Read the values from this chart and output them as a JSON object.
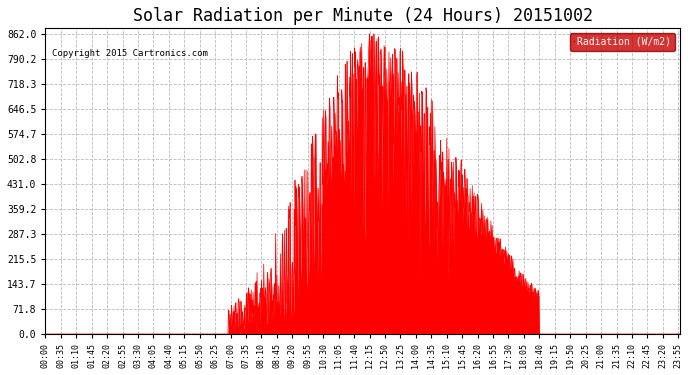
{
  "title": "Solar Radiation per Minute (24 Hours) 20151002",
  "copyright_text": "Copyright 2015 Cartronics.com",
  "background_color": "#ffffff",
  "plot_background_color": "#ffffff",
  "line_color": "#ff0000",
  "fill_color": "#ff0000",
  "grid_color": "#bbbbbb",
  "title_fontsize": 12,
  "ymin": 0.0,
  "ymax": 862.0,
  "yticks": [
    0.0,
    71.8,
    143.7,
    215.5,
    287.3,
    359.2,
    431.0,
    502.8,
    574.7,
    646.5,
    718.3,
    790.2,
    862.0
  ],
  "legend_label": "Radiation (W/m2)",
  "legend_bg": "#cc0000",
  "legend_text_color": "#ffffff"
}
